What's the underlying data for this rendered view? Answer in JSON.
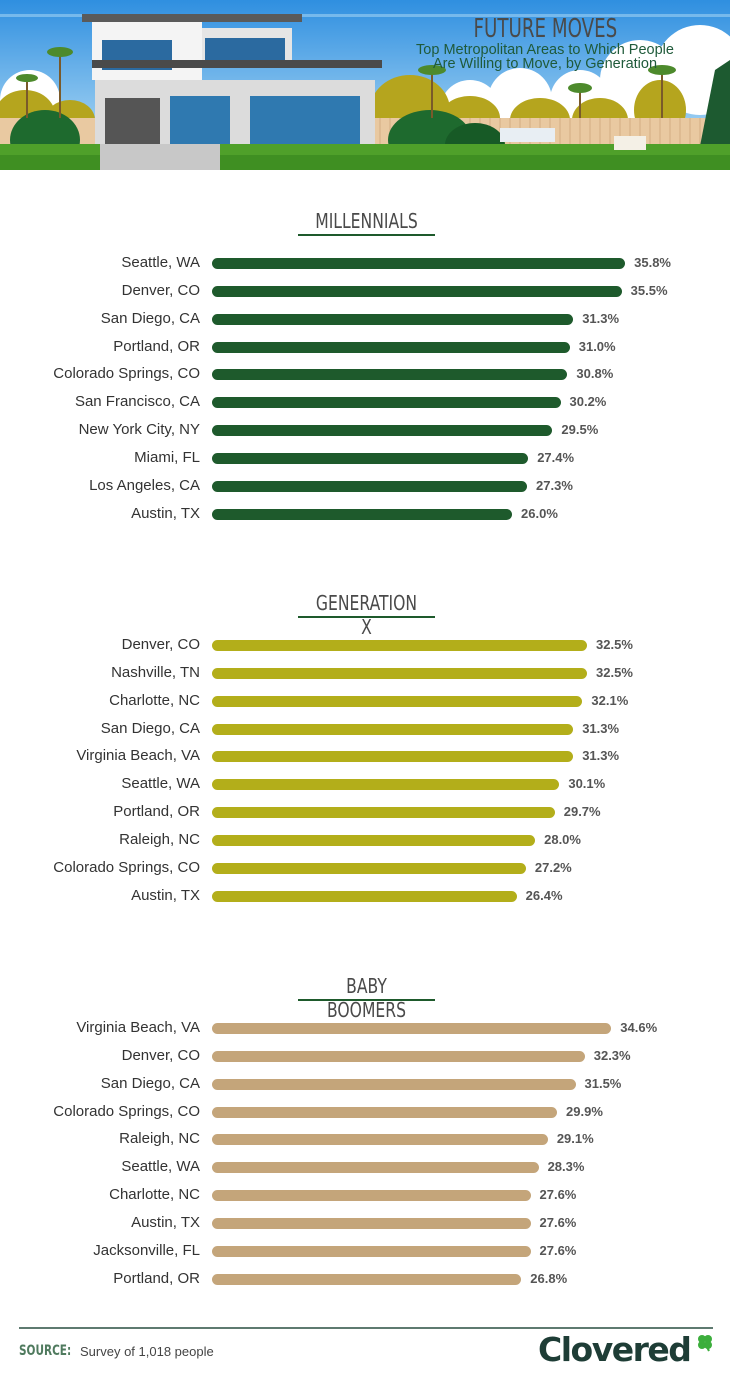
{
  "header": {
    "title": "FUTURE MOVES",
    "subtitle_line1": "Top Metropolitan Areas to Which People",
    "subtitle_line2": "Are Willing to Move, by Generation"
  },
  "chart_data": [
    {
      "type": "bar",
      "orientation": "horizontal",
      "title": "MILLENNIALS",
      "color": "#1e5a2c",
      "categories": [
        "Seattle, WA",
        "Denver, CO",
        "San Diego, CA",
        "Portland, OR",
        "Colorado Springs, CO",
        "San Francisco, CA",
        "New York City, NY",
        "Miami, FL",
        "Los Angeles, CA",
        "Austin, TX"
      ],
      "values": [
        35.8,
        35.5,
        31.3,
        31.0,
        30.8,
        30.2,
        29.5,
        27.4,
        27.3,
        26.0
      ],
      "labels": [
        "35.8%",
        "35.5%",
        "31.3%",
        "31.0%",
        "30.8%",
        "30.2%",
        "29.5%",
        "27.4%",
        "27.3%",
        "26.0%"
      ],
      "unit": "%"
    },
    {
      "type": "bar",
      "orientation": "horizontal",
      "title": "GENERATION X",
      "color": "#b3ae1a",
      "categories": [
        "Denver, CO",
        "Nashville, TN",
        "Charlotte, NC",
        "San Diego, CA",
        "Virginia Beach, VA",
        "Seattle, WA",
        "Portland, OR",
        "Raleigh, NC",
        "Colorado Springs, CO",
        "Austin, TX"
      ],
      "values": [
        32.5,
        32.5,
        32.1,
        31.3,
        31.3,
        30.1,
        29.7,
        28.0,
        27.2,
        26.4
      ],
      "labels": [
        "32.5%",
        "32.5%",
        "32.1%",
        "31.3%",
        "31.3%",
        "30.1%",
        "29.7%",
        "28.0%",
        "27.2%",
        "26.4%"
      ],
      "unit": "%"
    },
    {
      "type": "bar",
      "orientation": "horizontal",
      "title": "BABY BOOMERS",
      "color": "#c4a57a",
      "categories": [
        "Virginia Beach, VA",
        "Denver, CO",
        "San Diego, CA",
        "Colorado Springs, CO",
        "Raleigh, NC",
        "Seattle, WA",
        "Charlotte, NC",
        "Austin, TX",
        "Jacksonville, FL",
        "Portland, OR"
      ],
      "values": [
        34.6,
        32.3,
        31.5,
        29.9,
        29.1,
        28.3,
        27.6,
        27.6,
        27.6,
        26.8
      ],
      "labels": [
        "34.6%",
        "32.3%",
        "31.5%",
        "29.9%",
        "29.1%",
        "28.3%",
        "27.6%",
        "27.6%",
        "27.6%",
        "26.8%"
      ],
      "unit": "%"
    }
  ],
  "footer": {
    "source_label": "SOURCE:",
    "source_text": "Survey of 1,018 people",
    "logo_text": "Clovered"
  }
}
